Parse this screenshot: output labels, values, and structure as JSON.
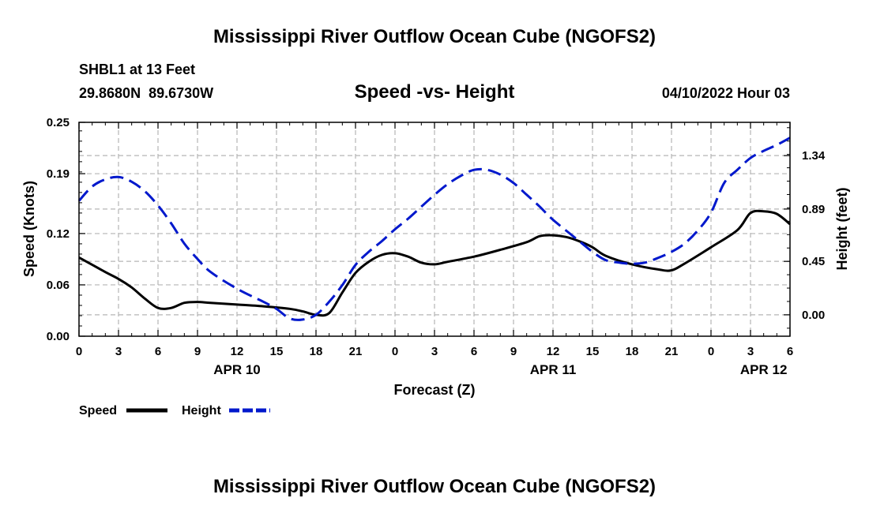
{
  "title": "Mississippi River Outflow Ocean Cube (NGOFS2)",
  "footer_title": "Mississippi River Outflow Ocean Cube (NGOFS2)",
  "station": "SHBL1 at 13 Feet",
  "coords": "29.8680N  89.6730W",
  "date": "04/10/2022 Hour 03",
  "chart_data": {
    "type": "line",
    "title": "Speed -vs- Height",
    "xlabel": "Forecast (Z)",
    "ylabel": "Speed (Knots)",
    "y2label": "Height (feet)",
    "x_range_hours": [
      0,
      54
    ],
    "x_ticks": [
      0,
      3,
      6,
      9,
      12,
      15,
      18,
      21,
      24,
      27,
      30,
      33,
      36,
      39,
      42,
      45,
      48,
      51,
      54
    ],
    "x_tick_labels": [
      "0",
      "3",
      "6",
      "9",
      "12",
      "15",
      "18",
      "21",
      "0",
      "3",
      "6",
      "9",
      "12",
      "15",
      "18",
      "21",
      "0",
      "3",
      "6"
    ],
    "day_labels": [
      {
        "label": "APR 10",
        "hour": 12
      },
      {
        "label": "APR 11",
        "hour": 36
      },
      {
        "label": "APR 12",
        "hour": 52
      }
    ],
    "ylim": [
      0,
      0.25
    ],
    "y_ticks": [
      0.0,
      0.06,
      0.12,
      0.19,
      0.25
    ],
    "y_tick_labels": [
      "0.00",
      "0.06",
      "0.12",
      "0.19",
      "0.25"
    ],
    "y2lim": [
      -0.18,
      1.62
    ],
    "y2_ticks": [
      0.0,
      0.45,
      0.89,
      1.34
    ],
    "y2_tick_labels": [
      "0.00",
      "0.45",
      "0.89",
      "1.34"
    ],
    "series": [
      {
        "name": "Speed",
        "axis": "left",
        "color": "#000000",
        "style": "solid",
        "x": [
          0,
          2,
          3,
          4,
          5,
          6,
          7,
          8,
          9,
          10,
          12,
          14,
          16,
          17,
          18,
          19,
          20,
          21,
          22,
          23,
          24,
          25,
          26,
          27,
          28,
          30,
          32,
          34,
          35,
          36,
          37,
          38,
          39,
          40,
          42,
          44,
          45,
          46,
          48,
          50,
          51,
          52,
          53,
          54
        ],
        "y": [
          0.092,
          0.075,
          0.067,
          0.057,
          0.044,
          0.033,
          0.033,
          0.039,
          0.04,
          0.039,
          0.037,
          0.035,
          0.032,
          0.029,
          0.025,
          0.027,
          0.051,
          0.074,
          0.087,
          0.095,
          0.097,
          0.093,
          0.086,
          0.084,
          0.087,
          0.093,
          0.101,
          0.11,
          0.117,
          0.118,
          0.116,
          0.111,
          0.104,
          0.094,
          0.084,
          0.078,
          0.077,
          0.085,
          0.104,
          0.124,
          0.144,
          0.146,
          0.143,
          0.131
        ]
      },
      {
        "name": "Height",
        "axis": "right",
        "color": "#0018cc",
        "style": "dashed",
        "x": [
          0,
          1,
          2,
          3,
          4,
          5,
          6,
          7,
          8,
          9,
          10,
          12,
          14,
          15,
          16,
          17,
          18,
          19,
          20,
          21,
          22,
          23,
          24,
          25,
          26,
          27,
          28,
          29,
          30,
          31,
          32,
          33,
          34,
          35,
          36,
          38,
          39,
          40,
          41,
          42,
          43,
          44,
          45,
          46,
          47,
          48,
          49,
          50,
          51,
          52,
          53,
          54
        ],
        "y": [
          0.96,
          1.08,
          1.14,
          1.16,
          1.12,
          1.04,
          0.92,
          0.77,
          0.6,
          0.47,
          0.36,
          0.22,
          0.11,
          0.05,
          -0.03,
          -0.04,
          0.0,
          0.11,
          0.25,
          0.42,
          0.53,
          0.62,
          0.72,
          0.81,
          0.91,
          1.01,
          1.1,
          1.17,
          1.22,
          1.22,
          1.18,
          1.11,
          1.01,
          0.91,
          0.8,
          0.62,
          0.53,
          0.46,
          0.44,
          0.43,
          0.44,
          0.48,
          0.53,
          0.6,
          0.71,
          0.86,
          1.11,
          1.22,
          1.32,
          1.38,
          1.43,
          1.49
        ]
      }
    ],
    "legend": [
      {
        "label": "Speed",
        "color": "#000000",
        "style": "solid"
      },
      {
        "label": "Height",
        "color": "#0018cc",
        "style": "dashed"
      }
    ],
    "grid": true
  }
}
